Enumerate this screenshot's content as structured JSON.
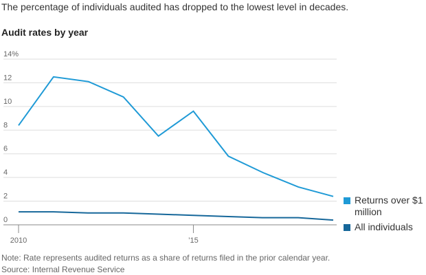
{
  "subtitle": "The percentage of individuals audited has dropped to the lowest level in decades.",
  "note": "Note: Rate represents audited returns as a share of returns filed in the prior calendar year.",
  "source": "Source: Internal Revenue Service",
  "chart_data": {
    "type": "line",
    "title": "Audit rates by year",
    "x": [
      2010,
      2011,
      2012,
      2013,
      2014,
      2015,
      2016,
      2017,
      2018,
      2019
    ],
    "series": [
      {
        "name": "Returns over $1 million",
        "color": "#1f9ad6",
        "values": [
          8.4,
          12.5,
          12.1,
          10.8,
          7.5,
          9.6,
          5.8,
          4.4,
          3.2,
          2.4
        ]
      },
      {
        "name": "All individuals",
        "color": "#16679a",
        "values": [
          1.1,
          1.1,
          1.0,
          1.0,
          0.9,
          0.8,
          0.7,
          0.6,
          0.6,
          0.4
        ]
      }
    ],
    "xlim": [
      2010,
      2019
    ],
    "xticks": [
      2010,
      {
        "value": 2015,
        "label": "’15"
      }
    ],
    "ylim": [
      0,
      14
    ],
    "yticks": [
      0,
      2,
      4,
      6,
      8,
      10,
      12,
      {
        "value": 14,
        "label": "14%"
      }
    ],
    "grid": true
  }
}
